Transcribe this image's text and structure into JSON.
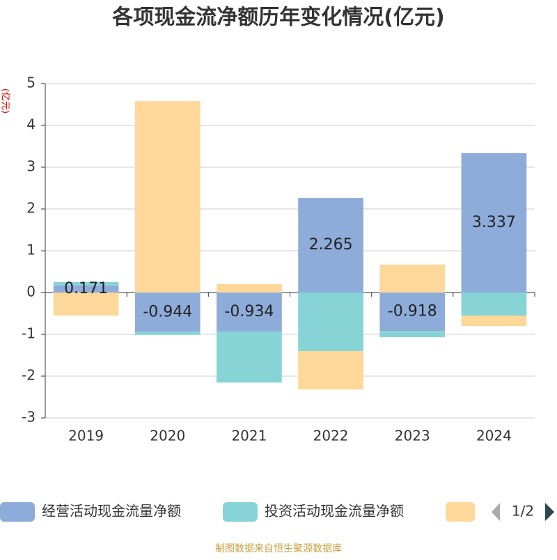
{
  "chart_data": {
    "type": "bar",
    "stacked": true,
    "title": "各项现金流净额历年变化情况(亿元)",
    "y_label": "(亿元)",
    "source": "制图数据来自恒生聚源数据库",
    "legend_page": "1/2",
    "categories": [
      "2019",
      "2020",
      "2021",
      "2022",
      "2023",
      "2024"
    ],
    "series": [
      {
        "name": "经营活动现金流量净额",
        "color": "#8eacd9",
        "labels": true,
        "values": [
          0.171,
          -0.944,
          -0.934,
          2.265,
          -0.918,
          3.337
        ]
      },
      {
        "name": "投资活动现金流量净额",
        "color": "#86d4d6",
        "values": [
          0.08,
          -0.07,
          -1.22,
          -1.4,
          -0.15,
          -0.55
        ]
      },
      {
        "name": null,
        "color": "#fdd89a",
        "values": [
          -0.55,
          4.58,
          0.2,
          -0.92,
          0.67,
          -0.25
        ]
      }
    ],
    "ylim": [
      -3,
      5
    ],
    "yticks": [
      -3,
      -2,
      -1,
      0,
      1,
      2,
      3,
      4,
      5
    ],
    "grid": true
  }
}
